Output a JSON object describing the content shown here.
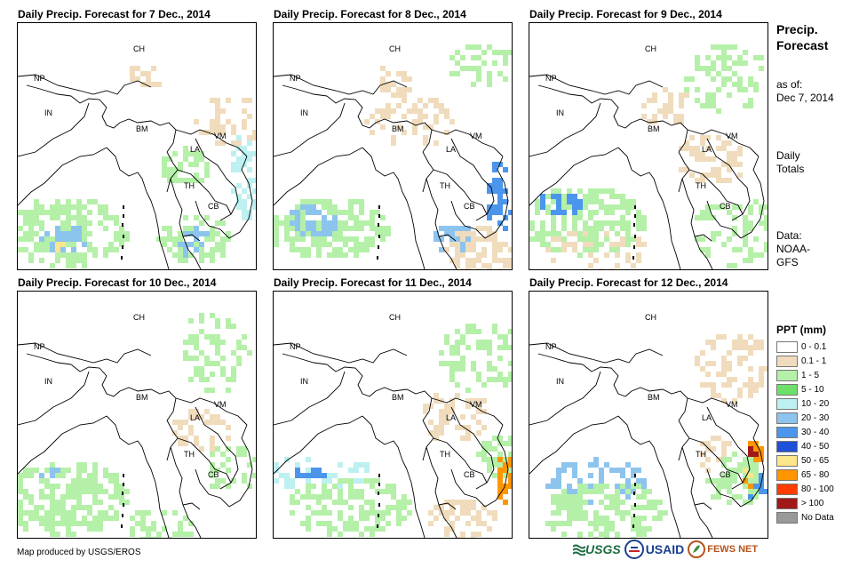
{
  "panels": [
    {
      "title": "Daily Precip. Forecast for 7 Dec., 2014"
    },
    {
      "title": "Daily Precip. Forecast for 8 Dec., 2014"
    },
    {
      "title": "Daily Precip. Forecast for 9 Dec., 2014"
    },
    {
      "title": "Daily Precip. Forecast for 10 Dec., 2014"
    },
    {
      "title": "Daily Precip. Forecast for 11 Dec., 2014"
    },
    {
      "title": "Daily Precip. Forecast for 12 Dec., 2014"
    }
  ],
  "countries": [
    "CH",
    "NP",
    "IN",
    "BM",
    "LA",
    "VM",
    "TH",
    "CB"
  ],
  "sidebar": {
    "title_line1": "Precip.",
    "title_line2": "Forecast",
    "asof_line1": "as of:",
    "asof_line2": "Dec 7, 2014",
    "totals_line1": "Daily",
    "totals_line2": "Totals",
    "data_line1": "Data:",
    "data_line2": "NOAA-",
    "data_line3": "GFS"
  },
  "legend": {
    "title": "PPT (mm)",
    "items": [
      {
        "label": "0 - 0.1",
        "color": "#ffffff"
      },
      {
        "label": "0.1 - 1",
        "color": "#f0dcbc"
      },
      {
        "label": "1 - 5",
        "color": "#b5f0a8"
      },
      {
        "label": "5 - 10",
        "color": "#6ee06a"
      },
      {
        "label": "10 - 20",
        "color": "#bdf0f0"
      },
      {
        "label": "20 - 30",
        "color": "#8cc4ee"
      },
      {
        "label": "30 - 40",
        "color": "#4b96ec"
      },
      {
        "label": "40 - 50",
        "color": "#1f50d8"
      },
      {
        "label": "50 - 65",
        "color": "#fce68a"
      },
      {
        "label": "65 - 80",
        "color": "#ff9600"
      },
      {
        "label": "80 - 100",
        "color": "#ff3c00"
      },
      {
        "label": "> 100",
        "color": "#a01818"
      },
      {
        "label": "No Data",
        "color": "#999999"
      }
    ]
  },
  "footer": {
    "credit": "Map produced by USGS/EROS",
    "logo_usgs": "USGS",
    "logo_usaid": "USAID",
    "logo_fews": "FEWS NET"
  }
}
